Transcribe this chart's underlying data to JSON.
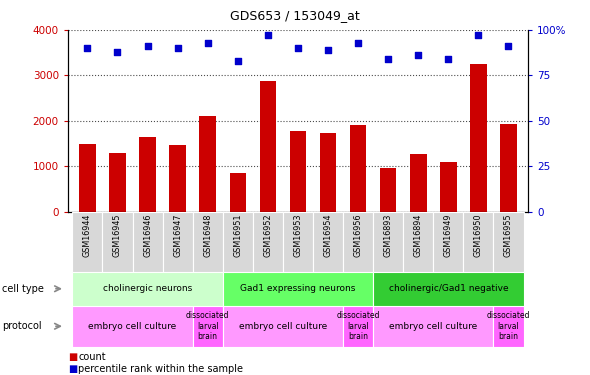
{
  "title": "GDS653 / 153049_at",
  "samples": [
    "GSM16944",
    "GSM16945",
    "GSM16946",
    "GSM16947",
    "GSM16948",
    "GSM16951",
    "GSM16952",
    "GSM16953",
    "GSM16954",
    "GSM16956",
    "GSM16893",
    "GSM16894",
    "GSM16949",
    "GSM16950",
    "GSM16955"
  ],
  "counts": [
    1500,
    1290,
    1640,
    1480,
    2100,
    860,
    2870,
    1780,
    1740,
    1900,
    960,
    1270,
    1100,
    3250,
    1940
  ],
  "percentiles": [
    90,
    88,
    91,
    90,
    93,
    83,
    97,
    90,
    89,
    93,
    84,
    86,
    84,
    97,
    91
  ],
  "ylim_left": [
    0,
    4000
  ],
  "ylim_right": [
    0,
    100
  ],
  "yticks_left": [
    0,
    1000,
    2000,
    3000,
    4000
  ],
  "ytick_labels_left": [
    "0",
    "1000",
    "2000",
    "3000",
    "4000"
  ],
  "yticks_right": [
    0,
    25,
    50,
    75,
    100
  ],
  "ytick_labels_right": [
    "0",
    "25",
    "50",
    "75",
    "100%"
  ],
  "bar_color": "#cc0000",
  "scatter_color": "#0000cc",
  "cell_type_groups": [
    {
      "label": "cholinergic neurons",
      "start": 0,
      "end": 4,
      "color": "#ccffcc"
    },
    {
      "label": "Gad1 expressing neurons",
      "start": 5,
      "end": 9,
      "color": "#66ff66"
    },
    {
      "label": "cholinergic/Gad1 negative",
      "start": 10,
      "end": 14,
      "color": "#33cc33"
    }
  ],
  "protocol_groups": [
    {
      "label": "embryo cell culture",
      "start": 0,
      "end": 3,
      "color": "#ff99ff"
    },
    {
      "label": "dissociated\nlarval\nbrain",
      "start": 4,
      "end": 4,
      "color": "#ff66ff"
    },
    {
      "label": "embryo cell culture",
      "start": 5,
      "end": 8,
      "color": "#ff99ff"
    },
    {
      "label": "dissociated\nlarval\nbrain",
      "start": 9,
      "end": 9,
      "color": "#ff66ff"
    },
    {
      "label": "embryo cell culture",
      "start": 10,
      "end": 13,
      "color": "#ff99ff"
    },
    {
      "label": "dissociated\nlarval\nbrain",
      "start": 14,
      "end": 14,
      "color": "#ff66ff"
    }
  ]
}
